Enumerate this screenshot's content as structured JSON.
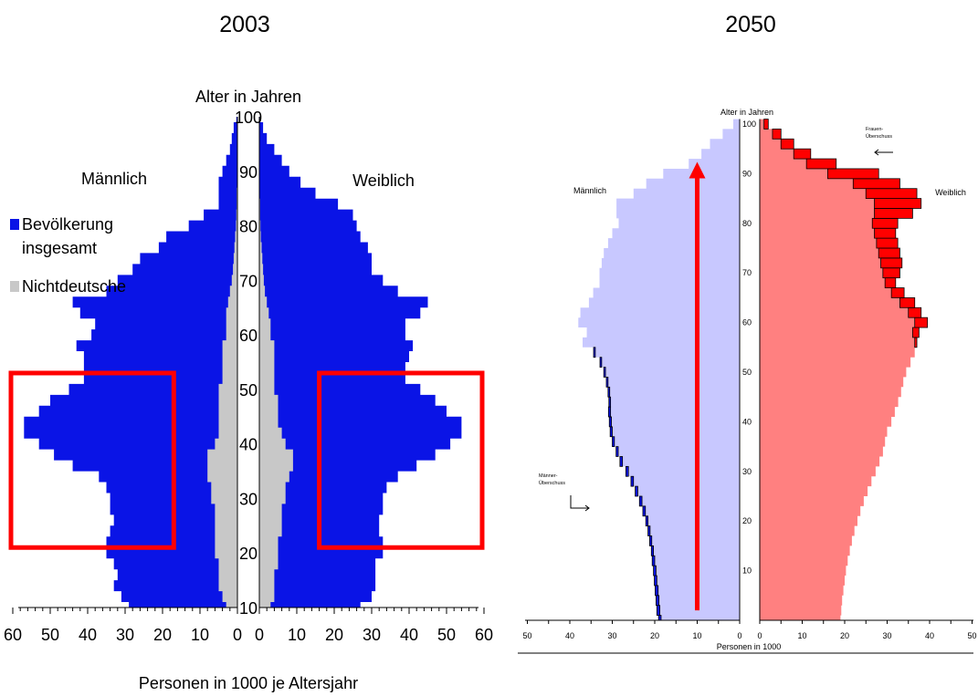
{
  "chart_data": [
    {
      "type": "bar",
      "title": "2003",
      "orientation": "horizontal-population-pyramid",
      "ylabel": "Alter in Jahren",
      "xlabel": "Personen in 1000 je Altersjahr",
      "left_label": "Männlich",
      "right_label": "Weiblich",
      "legend": [
        {
          "name": "Bevölkerung insgesamt",
          "color": "#0a14e6"
        },
        {
          "name": "Nichtdeutsche",
          "color": "#c8c8c8"
        }
      ],
      "y_ticks": [
        10,
        20,
        30,
        40,
        50,
        60,
        70,
        80,
        90,
        100
      ],
      "x_ticks_left": [
        60,
        50,
        40,
        30,
        20,
        10,
        0
      ],
      "x_ticks_right": [
        0,
        10,
        20,
        30,
        40,
        50,
        60
      ],
      "xlim": [
        0,
        60
      ],
      "ylim": [
        10,
        100
      ],
      "highlight_boxes": [
        {
          "side": "male",
          "age_from": 21,
          "age_to": 53,
          "x_from": 17,
          "x_to": 62
        },
        {
          "side": "female",
          "age_from": 21,
          "age_to": 53,
          "x_from": 16,
          "x_to": 62
        }
      ],
      "highlight_color": "#ff0000",
      "ages": [
        10,
        12,
        14,
        16,
        18,
        20,
        22,
        24,
        26,
        28,
        30,
        32,
        34,
        36,
        38,
        40,
        42,
        44,
        46,
        48,
        50,
        52,
        54,
        56,
        58,
        60,
        62,
        64,
        66,
        68,
        70,
        72,
        74,
        76,
        78,
        80,
        82,
        84,
        86,
        88,
        90,
        92,
        94,
        96,
        98,
        100
      ],
      "series": [
        {
          "name": "Bevölkerung insgesamt",
          "side": "male",
          "values": [
            29,
            31,
            33,
            32,
            33,
            35,
            35,
            34,
            33,
            34,
            34,
            35,
            37,
            44,
            49,
            53,
            57,
            57,
            53,
            50,
            45,
            41,
            41,
            41,
            43,
            39,
            38,
            42,
            44,
            35,
            32,
            28,
            26,
            21,
            19,
            13,
            9,
            5,
            5,
            5,
            4,
            3,
            2,
            1.5,
            1,
            0.3
          ]
        },
        {
          "name": "Nichtdeutsche",
          "side": "male",
          "values": [
            3,
            4,
            5,
            5,
            5,
            6,
            6,
            6,
            6,
            6,
            7,
            7,
            8,
            8,
            8,
            6,
            5,
            5,
            5,
            5,
            5,
            4,
            4,
            4,
            4,
            3,
            3,
            3,
            2.5,
            2,
            1.5,
            1.2,
            1,
            0.8,
            0.6,
            0.4,
            0.3,
            0.2,
            0.2,
            0.1,
            0.1,
            0.1,
            0.1,
            0,
            0,
            0
          ]
        },
        {
          "name": "Bevölkerung insgesamt",
          "side": "female",
          "values": [
            27,
            30,
            31,
            31,
            31,
            33,
            33,
            32,
            32,
            33,
            33,
            34,
            37,
            42,
            47,
            51,
            54,
            54,
            50,
            47,
            43,
            39,
            39,
            40,
            41,
            39,
            39,
            43,
            45,
            37,
            33,
            30,
            30,
            29,
            27,
            26,
            25,
            21,
            15,
            11,
            8,
            6,
            4,
            2,
            1,
            0.3
          ]
        },
        {
          "name": "Nichtdeutsche",
          "side": "female",
          "values": [
            3,
            4,
            4,
            4,
            5,
            5,
            5,
            6,
            6,
            6,
            7,
            7,
            8,
            9,
            9,
            7,
            6,
            5,
            5,
            5,
            4,
            4,
            4,
            4,
            4,
            3,
            3,
            2.5,
            2,
            1.5,
            1.2,
            1,
            0.8,
            0.6,
            0.4,
            0.3,
            0.2,
            0.2,
            0.1,
            0.1,
            0.1,
            0,
            0,
            0,
            0,
            0
          ]
        }
      ]
    },
    {
      "type": "bar",
      "title": "2050",
      "orientation": "horizontal-population-pyramid",
      "ylabel": "Alter in Jahren",
      "xlabel": "Personen in 1000",
      "left_label": "Männlich",
      "right_label": "Weiblich",
      "surplus_labels": {
        "female": "Frauen-Überschuss",
        "male": "Männer-Überschuss"
      },
      "y_ticks": [
        10,
        20,
        30,
        40,
        50,
        60,
        70,
        80,
        90,
        100
      ],
      "x_ticks_left": [
        50,
        40,
        30,
        20,
        10,
        0
      ],
      "x_ticks_right": [
        0,
        10,
        20,
        30,
        40,
        50
      ],
      "xlim": [
        0,
        50
      ],
      "ylim": [
        0,
        100
      ],
      "arrow": {
        "age_from": 2,
        "age_to": 92,
        "x": 10,
        "color": "#ff0000"
      },
      "colors": {
        "male": "#c8c8ff",
        "female": "#ff8080",
        "female_surplus": "#ff0000",
        "male_surplus": "#0a14e6"
      },
      "ages": [
        0,
        2,
        4,
        6,
        8,
        10,
        12,
        14,
        16,
        18,
        20,
        22,
        24,
        26,
        28,
        30,
        32,
        34,
        36,
        38,
        40,
        42,
        44,
        46,
        48,
        50,
        52,
        54,
        56,
        58,
        60,
        62,
        64,
        66,
        68,
        70,
        72,
        74,
        76,
        78,
        80,
        82,
        84,
        86,
        88,
        90,
        92,
        94,
        96,
        98,
        100
      ],
      "series": [
        {
          "name": "Männlich",
          "side": "male",
          "values": [
            18.5,
            18.8,
            19.0,
            19.2,
            19.5,
            19.7,
            20.0,
            20.3,
            20.7,
            21.1,
            21.6,
            22.2,
            23.0,
            24.0,
            25.0,
            26.2,
            27.6,
            28.6,
            29.5,
            30.0,
            30.2,
            30.4,
            30.4,
            30.6,
            31.0,
            31.6,
            32.5,
            34.0,
            37.0,
            36.0,
            38.0,
            37.5,
            35.5,
            34.5,
            33.0,
            33.0,
            32.5,
            32.0,
            31.0,
            30.0,
            28.5,
            29.0,
            29.0,
            25.0,
            22.0,
            18.0,
            12.0,
            9.0,
            7.0,
            4.0,
            1.5
          ]
        },
        {
          "name": "Weiblich",
          "side": "female",
          "values": [
            19,
            19.2,
            19.4,
            19.7,
            20,
            20.3,
            20.7,
            21.2,
            21.7,
            22.3,
            23,
            23.7,
            24.5,
            25.4,
            26.3,
            27.3,
            28.2,
            29.0,
            29.5,
            30.0,
            31.0,
            31.8,
            32.6,
            33.3,
            33.8,
            34.5,
            35.5,
            36.5,
            36.5,
            36.0,
            36.5,
            35.0,
            33.0,
            31.0,
            29.5,
            29.0,
            28.5,
            28.0,
            27.5,
            27.0,
            26.5,
            27.0,
            27.0,
            25.0,
            22.0,
            16.0,
            11.0,
            8.0,
            5.0,
            3.0,
            1.0
          ]
        },
        {
          "name": "Frauen-Überschuss",
          "side": "female",
          "values": [
            0,
            0,
            0,
            0,
            0,
            0,
            0,
            0,
            0,
            0,
            0,
            0,
            0,
            0,
            0,
            0,
            0,
            0,
            0,
            0,
            0,
            0,
            0,
            0,
            0,
            0,
            0,
            0,
            0.5,
            1.5,
            3.0,
            3.0,
            3.5,
            3.0,
            2.5,
            4.0,
            5.0,
            5.0,
            5.0,
            5.0,
            6.0,
            9.0,
            11.0,
            12.0,
            11.0,
            12.0,
            7.0,
            4.0,
            3.0,
            2.0,
            1.0
          ]
        },
        {
          "name": "Männer-Überschuss",
          "side": "male",
          "values": [
            0.6,
            0.7,
            0.7,
            0.7,
            0.6,
            0.6,
            0.6,
            0.5,
            0.5,
            0.5,
            0.5,
            0.6,
            0.6,
            0.6,
            0.6,
            0.6,
            0.6,
            0.5,
            0.5,
            0.5,
            0.5,
            0.5,
            0.4,
            0.4,
            0.4,
            0.4,
            0.4,
            0.4,
            0,
            0,
            0,
            0,
            0,
            0,
            0,
            0,
            0,
            0,
            0,
            0,
            0,
            0,
            0,
            0,
            0,
            0,
            0,
            0,
            0,
            0,
            0
          ]
        }
      ]
    }
  ]
}
